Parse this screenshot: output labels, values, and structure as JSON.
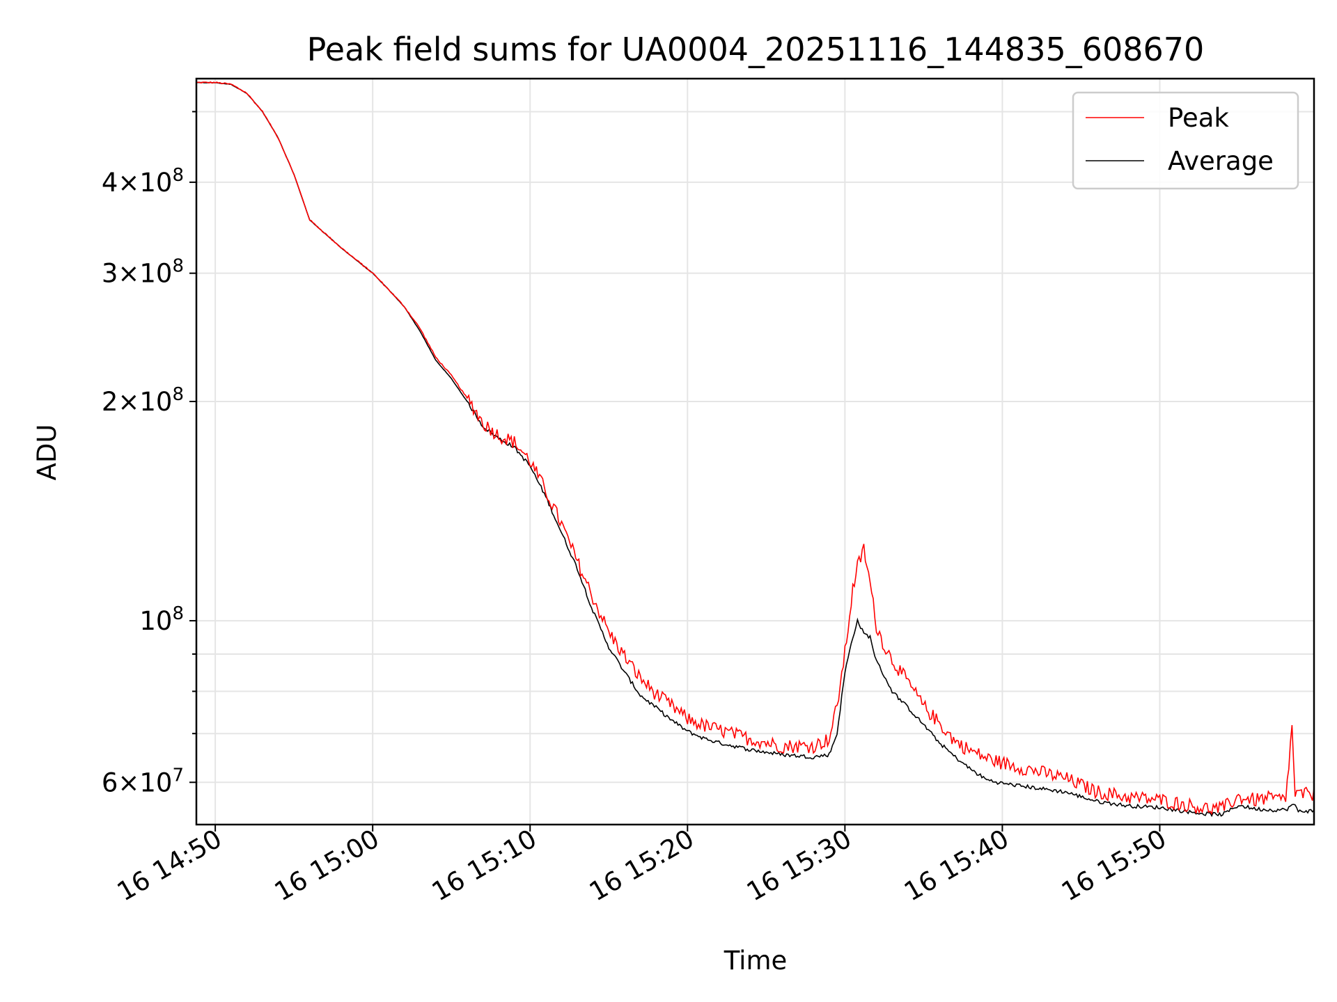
{
  "chart_data": {
    "type": "line",
    "title": "Peak field sums for UA0004_20251116_144835_608670",
    "xlabel": "Time",
    "ylabel": "ADU",
    "yscale": "log",
    "xlim_minutes": [
      -1.2,
      69.8
    ],
    "ylim": [
      52500000,
      555000000
    ],
    "grid": true,
    "legend_position": "top-right",
    "x_ticks": [
      {
        "minutes": 0,
        "label": "16 14:50"
      },
      {
        "minutes": 10,
        "label": "16 15:00"
      },
      {
        "minutes": 20,
        "label": "16 15:10"
      },
      {
        "minutes": 30,
        "label": "16 15:20"
      },
      {
        "minutes": 40,
        "label": "16 15:30"
      },
      {
        "minutes": 50,
        "label": "16 15:40"
      },
      {
        "minutes": 60,
        "label": "16 15:50"
      }
    ],
    "y_major_ticks": [
      {
        "value": 60000000,
        "mantissa": "6",
        "exp": "7",
        "style": "mant"
      },
      {
        "value": 100000000,
        "mantissa": "",
        "exp": "8",
        "style": "pow"
      },
      {
        "value": 200000000,
        "mantissa": "2",
        "exp": "8",
        "style": "mant"
      },
      {
        "value": 300000000,
        "mantissa": "3",
        "exp": "8",
        "style": "mant"
      },
      {
        "value": 400000000,
        "mantissa": "4",
        "exp": "8",
        "style": "mant"
      }
    ],
    "y_minor_ticks": [
      70000000,
      80000000,
      90000000,
      500000000
    ],
    "x_origin": "14:50",
    "series_keypoints": {
      "average": [
        [
          -1.2,
          548000000
        ],
        [
          0,
          548000000
        ],
        [
          1,
          545000000
        ],
        [
          2,
          530000000
        ],
        [
          3,
          500000000
        ],
        [
          4,
          460000000
        ],
        [
          5,
          410000000
        ],
        [
          6,
          355000000
        ],
        [
          8,
          325000000
        ],
        [
          10,
          300000000
        ],
        [
          11,
          285000000
        ],
        [
          12,
          270000000
        ],
        [
          13,
          250000000
        ],
        [
          14,
          228000000
        ],
        [
          15,
          215000000
        ],
        [
          16,
          200000000
        ],
        [
          17,
          185000000
        ],
        [
          18,
          178000000
        ],
        [
          19,
          173000000
        ],
        [
          20,
          163000000
        ],
        [
          21,
          148000000
        ],
        [
          22,
          132000000
        ],
        [
          23,
          118000000
        ],
        [
          24,
          103000000
        ],
        [
          25,
          92000000
        ],
        [
          26,
          85000000
        ],
        [
          27,
          79000000
        ],
        [
          28,
          76000000
        ],
        [
          29,
          73000000
        ],
        [
          30,
          70500000
        ],
        [
          31,
          69000000
        ],
        [
          32,
          68000000
        ],
        [
          34,
          66500000
        ],
        [
          36,
          65500000
        ],
        [
          38,
          65000000
        ],
        [
          39,
          65500000
        ],
        [
          39.5,
          70000000
        ],
        [
          40,
          85000000
        ],
        [
          40.5,
          95000000
        ],
        [
          40.8,
          100000000
        ],
        [
          41.2,
          96000000
        ],
        [
          41.6,
          95000000
        ],
        [
          42,
          88000000
        ],
        [
          42.5,
          84000000
        ],
        [
          43,
          80000000
        ],
        [
          44,
          76000000
        ],
        [
          45,
          72000000
        ],
        [
          46,
          68000000
        ],
        [
          47,
          65000000
        ],
        [
          48,
          62500000
        ],
        [
          49,
          60500000
        ],
        [
          50,
          59800000
        ],
        [
          52,
          59000000
        ],
        [
          54,
          58200000
        ],
        [
          56,
          56500000
        ],
        [
          58,
          55700000
        ],
        [
          60,
          55400000
        ],
        [
          61,
          55000000
        ],
        [
          62,
          54600000
        ],
        [
          63,
          54300000
        ],
        [
          64,
          54200000
        ],
        [
          65,
          55800000
        ],
        [
          66,
          55200000
        ],
        [
          67,
          55000000
        ],
        [
          68,
          55000000
        ],
        [
          68.5,
          56000000
        ],
        [
          68.8,
          54800000
        ],
        [
          69.8,
          54800000
        ]
      ],
      "peak": [
        [
          -1.2,
          548000000
        ],
        [
          0,
          548000000
        ],
        [
          1,
          545000000
        ],
        [
          2,
          530000000
        ],
        [
          3,
          500000000
        ],
        [
          4,
          460000000
        ],
        [
          5,
          410000000
        ],
        [
          6,
          355000000
        ],
        [
          8,
          325000000
        ],
        [
          10,
          300000000
        ],
        [
          11,
          285000000
        ],
        [
          12,
          270000000
        ],
        [
          13,
          252000000
        ],
        [
          14,
          230000000
        ],
        [
          15,
          217000000
        ],
        [
          16,
          202000000
        ],
        [
          17,
          186000000
        ],
        [
          18,
          179000000
        ],
        [
          19,
          175000000
        ],
        [
          20,
          165000000
        ],
        [
          21,
          150000000
        ],
        [
          22,
          135000000
        ],
        [
          23,
          120000000
        ],
        [
          24,
          107000000
        ],
        [
          25,
          96000000
        ],
        [
          26,
          89000000
        ],
        [
          27,
          83000000
        ],
        [
          28,
          79000000
        ],
        [
          29,
          76000000
        ],
        [
          30,
          73000000
        ],
        [
          31,
          71500000
        ],
        [
          32,
          70500000
        ],
        [
          34,
          68500000
        ],
        [
          36,
          67000000
        ],
        [
          38,
          67000000
        ],
        [
          39,
          68500000
        ],
        [
          39.5,
          76000000
        ],
        [
          40,
          90000000
        ],
        [
          40.5,
          110000000
        ],
        [
          40.8,
          118000000
        ],
        [
          41.2,
          125000000
        ],
        [
          41.6,
          112000000
        ],
        [
          42,
          98000000
        ],
        [
          42.5,
          92000000
        ],
        [
          43,
          88000000
        ],
        [
          44,
          82000000
        ],
        [
          45,
          76000000
        ],
        [
          46,
          72000000
        ],
        [
          47,
          68000000
        ],
        [
          48,
          66000000
        ],
        [
          49,
          64500000
        ],
        [
          50,
          63500000
        ],
        [
          52,
          62000000
        ],
        [
          54,
          60500000
        ],
        [
          56,
          58000000
        ],
        [
          58,
          57000000
        ],
        [
          60,
          56500000
        ],
        [
          61,
          56000000
        ],
        [
          62,
          55500000
        ],
        [
          63,
          55000000
        ],
        [
          64,
          55000000
        ],
        [
          65,
          57000000
        ],
        [
          66,
          56500000
        ],
        [
          67,
          56800000
        ],
        [
          68,
          56500000
        ],
        [
          68.4,
          71000000
        ],
        [
          68.6,
          57500000
        ],
        [
          69.8,
          57500000
        ]
      ]
    },
    "series": [
      {
        "name": "Peak",
        "color": "#ff0000",
        "noise": 0.045
      },
      {
        "name": "Average",
        "color": "#000000",
        "noise": 0.012
      }
    ],
    "legend": [
      {
        "name": "Peak",
        "color": "#ff0000"
      },
      {
        "name": "Average",
        "color": "#000000"
      }
    ]
  }
}
